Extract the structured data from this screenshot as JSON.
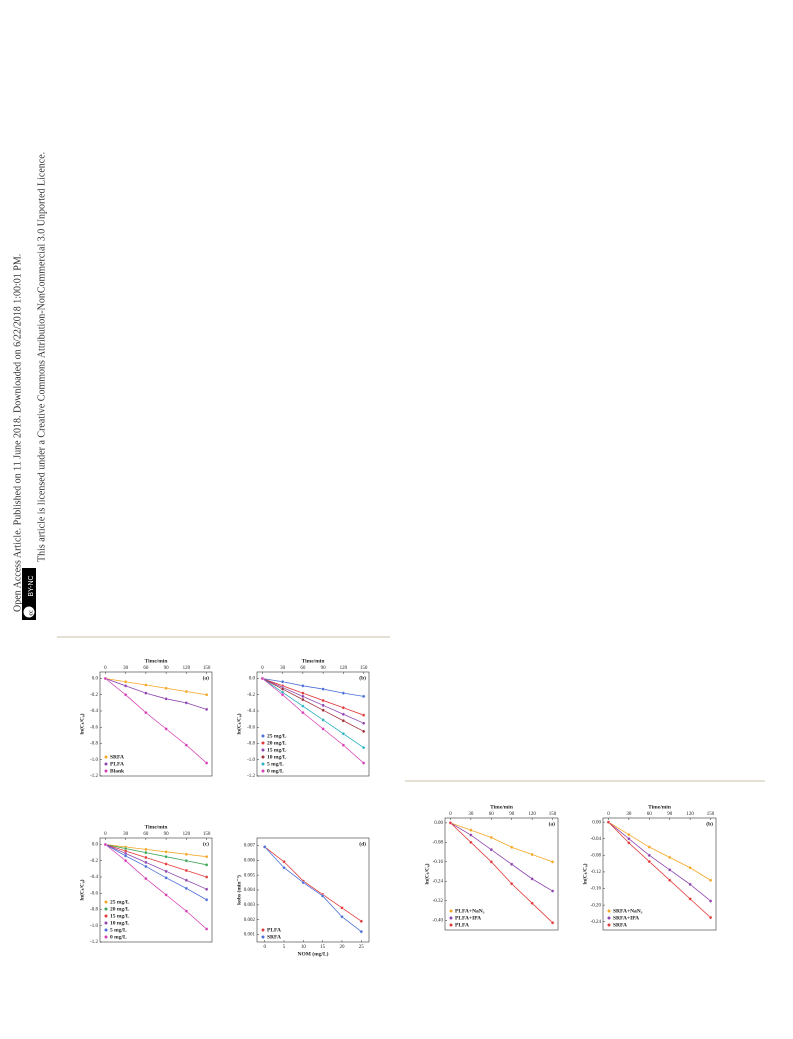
{
  "sidebar": {
    "line1": "Open Access Article. Published on 11 June 2018. Downloaded on 6/22/2018 1:00:01 PM.",
    "badge": "BY-NC",
    "badge_icon": "cc",
    "line2": "This article is licensed under a Creative Commons Attribution-NonCommercial 3.0 Unported Licence."
  },
  "chart_data": [
    {
      "type": "line",
      "panel": "(a)",
      "xlabel": "Time/min",
      "ylabel": "ln(Cₜ/C₀)",
      "x_axis": "top",
      "legend": "lower left",
      "x": [
        0,
        30,
        60,
        90,
        120,
        150
      ],
      "xlim": [
        -8,
        158
      ],
      "xticks": [
        0,
        30,
        60,
        90,
        120,
        150
      ],
      "ylim": [
        -1.2,
        0.08
      ],
      "yticks": [
        {
          "value": 0,
          "label": "0.0"
        },
        -0.2,
        -0.4,
        -0.6,
        -0.8,
        {
          "value": -1,
          "label": "-1.0"
        },
        -1.2
      ],
      "series": [
        {
          "name": "SRFA",
          "color": "#f5a623",
          "values": [
            0,
            -0.04,
            -0.08,
            -0.12,
            -0.16,
            -0.2
          ]
        },
        {
          "name": "PLFA",
          "color": "#8e44ad",
          "values": [
            0,
            -0.09,
            -0.18,
            -0.25,
            -0.3,
            -0.38
          ]
        },
        {
          "name": "Blank",
          "color": "#d63fb4",
          "values": [
            0,
            -0.2,
            -0.42,
            -0.62,
            -0.82,
            -1.04
          ]
        }
      ]
    },
    {
      "type": "line",
      "panel": "(b)",
      "xlabel": "Time/min",
      "ylabel": "ln(Cₜ/C₀)",
      "x_axis": "top",
      "legend": "lower left",
      "x": [
        0,
        30,
        60,
        90,
        120,
        150
      ],
      "xlim": [
        -8,
        158
      ],
      "xticks": [
        0,
        30,
        60,
        90,
        120,
        150
      ],
      "ylim": [
        -1.2,
        0.08
      ],
      "yticks": [
        {
          "value": 0,
          "label": "0.0"
        },
        -0.2,
        -0.4,
        -0.6,
        -0.8,
        {
          "value": -1,
          "label": "-1.0"
        },
        -1.2
      ],
      "series": [
        {
          "name": "25 mg/L",
          "color": "#4a6fd8",
          "values": [
            0,
            -0.04,
            -0.09,
            -0.13,
            -0.18,
            -0.22
          ]
        },
        {
          "name": "20 mg/L",
          "color": "#e23b3b",
          "values": [
            0,
            -0.09,
            -0.18,
            -0.27,
            -0.36,
            -0.45
          ]
        },
        {
          "name": "15 mg/L",
          "color": "#8e44ad",
          "values": [
            0,
            -0.11,
            -0.22,
            -0.33,
            -0.44,
            -0.55
          ]
        },
        {
          "name": "10 mg/L",
          "color": "#a0303a",
          "values": [
            0,
            -0.13,
            -0.26,
            -0.39,
            -0.52,
            -0.65
          ]
        },
        {
          "name": "5 mg/L",
          "color": "#2bb3c0",
          "values": [
            0,
            -0.17,
            -0.34,
            -0.51,
            -0.68,
            -0.85
          ]
        },
        {
          "name": "0 mg/L",
          "color": "#d63fb4",
          "values": [
            0,
            -0.2,
            -0.42,
            -0.62,
            -0.82,
            -1.04
          ]
        }
      ]
    },
    {
      "type": "line",
      "panel": "(c)",
      "xlabel": "Time/min",
      "ylabel": "ln(Cₜ/C₀)",
      "x_axis": "top",
      "legend": "lower left",
      "x": [
        0,
        30,
        60,
        90,
        120,
        150
      ],
      "xlim": [
        -8,
        158
      ],
      "xticks": [
        0,
        30,
        60,
        90,
        120,
        150
      ],
      "ylim": [
        -1.2,
        0.08
      ],
      "yticks": [
        {
          "value": 0,
          "label": "0.0"
        },
        -0.2,
        -0.4,
        -0.6,
        -0.8,
        {
          "value": -1,
          "label": "-1.0"
        },
        -1.2
      ],
      "series": [
        {
          "name": "25 mg/L",
          "color": "#f5a623",
          "values": [
            0,
            -0.03,
            -0.06,
            -0.09,
            -0.12,
            -0.15
          ]
        },
        {
          "name": "20 mg/L",
          "color": "#3aa655",
          "values": [
            0,
            -0.05,
            -0.1,
            -0.15,
            -0.2,
            -0.25
          ]
        },
        {
          "name": "15 mg/L",
          "color": "#e23b3b",
          "values": [
            0,
            -0.08,
            -0.16,
            -0.24,
            -0.32,
            -0.4
          ]
        },
        {
          "name": "10 mg/L",
          "color": "#8e44ad",
          "values": [
            0,
            -0.11,
            -0.22,
            -0.33,
            -0.44,
            -0.55
          ]
        },
        {
          "name": "5 mg/L",
          "color": "#4a6fd8",
          "values": [
            0,
            -0.14,
            -0.27,
            -0.41,
            -0.54,
            -0.68
          ]
        },
        {
          "name": "0 mg/L",
          "color": "#d63fb4",
          "values": [
            0,
            -0.2,
            -0.42,
            -0.62,
            -0.82,
            -1.04
          ]
        }
      ]
    },
    {
      "type": "line",
      "panel": "(d)",
      "xlabel": "NOM (mg/L)",
      "ylabel": "kobs (min⁻¹)",
      "x_axis": "bottom",
      "legend": "lower left",
      "x": [
        0,
        5,
        10,
        15,
        20,
        25
      ],
      "xlim": [
        -2,
        27
      ],
      "xticks": [
        0,
        5,
        10,
        15,
        20,
        25
      ],
      "ylim": [
        0.0005,
        0.0075
      ],
      "yticks": [
        0.007,
        0.006,
        0.005,
        0.004,
        0.003,
        0.002,
        0.001
      ],
      "series": [
        {
          "name": "PLFA",
          "color": "#e23b3b",
          "values": [
            0.0069,
            0.0059,
            0.0046,
            0.0037,
            0.0028,
            0.0019
          ]
        },
        {
          "name": "SRFA",
          "color": "#4a6fd8",
          "values": [
            0.0069,
            0.0055,
            0.0045,
            0.0036,
            0.0022,
            0.0012
          ]
        }
      ]
    },
    {
      "type": "line",
      "panel": "(a)",
      "xlabel": "Time/min",
      "ylabel": "ln(Cₜ/C₀)",
      "x_axis": "top",
      "legend": "lower left",
      "x": [
        0,
        30,
        60,
        90,
        120,
        150
      ],
      "xlim": [
        -8,
        158
      ],
      "xticks": [
        0,
        30,
        60,
        90,
        120,
        150
      ],
      "ylim": [
        -0.44,
        0.02
      ],
      "yticks": [
        {
          "value": 0,
          "label": "0.00"
        },
        {
          "value": -0.08,
          "label": "-0.08"
        },
        {
          "value": -0.16,
          "label": "-0.16"
        },
        {
          "value": -0.24,
          "label": "-0.24"
        },
        {
          "value": -0.32,
          "label": "-0.32"
        },
        {
          "value": -0.4,
          "label": "-0.40"
        }
      ],
      "series": [
        {
          "name": "PLFA+NaN₃",
          "color": "#f5a623",
          "values": [
            0,
            -0.03,
            -0.06,
            -0.1,
            -0.13,
            -0.16
          ]
        },
        {
          "name": "PLFA+IPA",
          "color": "#8e44ad",
          "values": [
            0,
            -0.05,
            -0.11,
            -0.17,
            -0.23,
            -0.28
          ]
        },
        {
          "name": "PLFA",
          "color": "#e23b3b",
          "values": [
            0,
            -0.08,
            -0.16,
            -0.25,
            -0.33,
            -0.41
          ]
        }
      ]
    },
    {
      "type": "line",
      "panel": "(b)",
      "xlabel": "Time/min",
      "ylabel": "ln(Cₜ/C₀)",
      "x_axis": "top",
      "legend": "lower left",
      "x": [
        0,
        30,
        60,
        90,
        120,
        150
      ],
      "xlim": [
        -8,
        158
      ],
      "xticks": [
        0,
        30,
        60,
        90,
        120,
        150
      ],
      "ylim": [
        -0.26,
        0.01
      ],
      "yticks": [
        {
          "value": 0,
          "label": "0.00"
        },
        {
          "value": -0.04,
          "label": "-0.04"
        },
        {
          "value": -0.08,
          "label": "-0.08"
        },
        {
          "value": -0.12,
          "label": "-0.12"
        },
        {
          "value": -0.16,
          "label": "-0.16"
        },
        {
          "value": -0.2,
          "label": "-0.20"
        },
        {
          "value": -0.24,
          "label": "-0.24"
        }
      ],
      "series": [
        {
          "name": "SRFA+NaN₃",
          "color": "#f5a623",
          "values": [
            0,
            -0.03,
            -0.06,
            -0.085,
            -0.11,
            -0.14
          ]
        },
        {
          "name": "SRFA+IPA",
          "color": "#8e44ad",
          "values": [
            0,
            -0.04,
            -0.08,
            -0.115,
            -0.15,
            -0.19
          ]
        },
        {
          "name": "SRFA",
          "color": "#e23b3b",
          "values": [
            0,
            -0.05,
            -0.095,
            -0.14,
            -0.185,
            -0.23
          ]
        }
      ]
    }
  ]
}
